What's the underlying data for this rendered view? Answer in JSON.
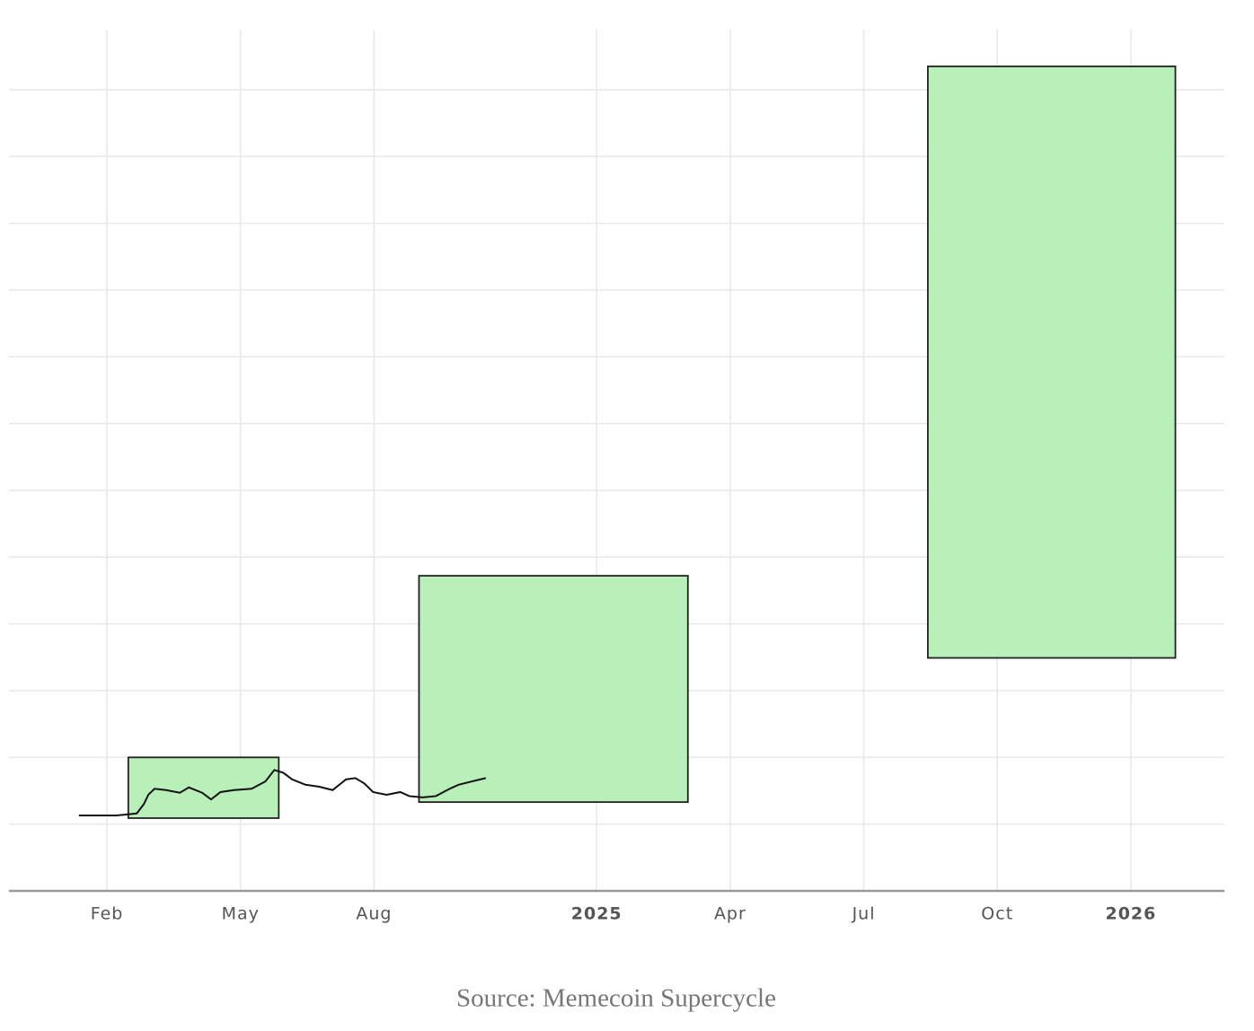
{
  "chart_data": {
    "type": "line",
    "caption": "Source: Memecoin Supercycle",
    "x": [
      0.37,
      1.22,
      1.67,
      1.83,
      1.93,
      2.07,
      2.33,
      2.64,
      2.84,
      3.14,
      3.34,
      3.55,
      3.85,
      4.25,
      4.56,
      4.76,
      4.96,
      5.16,
      5.46,
      5.77,
      6.07,
      6.37,
      6.58,
      6.78,
      6.98,
      7.28,
      7.59,
      7.79,
      8.09,
      8.39,
      8.7,
      8.9,
      9.2,
      9.51
    ],
    "series": [
      {
        "color": "#111111",
        "values": [
          1.13,
          1.13,
          1.16,
          1.3,
          1.44,
          1.53,
          1.51,
          1.47,
          1.55,
          1.47,
          1.37,
          1.48,
          1.51,
          1.53,
          1.64,
          1.81,
          1.77,
          1.67,
          1.59,
          1.56,
          1.51,
          1.67,
          1.69,
          1.61,
          1.48,
          1.44,
          1.48,
          1.42,
          1.4,
          1.42,
          1.53,
          1.59,
          1.64,
          1.69
        ]
      }
    ],
    "boxes": [
      {
        "x0": 1.48,
        "x1": 4.86,
        "y0": 1.09,
        "y1": 2.0
      },
      {
        "x0": 8.01,
        "x1": 14.05,
        "y0": 1.33,
        "y1": 4.72
      },
      {
        "x0": 19.44,
        "x1": 25.0,
        "y0": 3.49,
        "y1": 12.35
      }
    ],
    "box_color": "#b5eeb5",
    "xlim": [
      -1.2,
      26.1
    ],
    "xticks": [
      {
        "value": 1,
        "label": "Feb"
      },
      {
        "value": 4,
        "label": "May"
      },
      {
        "value": 7,
        "label": "Aug"
      },
      {
        "value": 12,
        "label": "2025",
        "bold": true
      },
      {
        "value": 15,
        "label": "Apr"
      },
      {
        "value": 18,
        "label": "Jul"
      },
      {
        "value": 21,
        "label": "Oct"
      },
      {
        "value": 24,
        "label": "2026",
        "bold": true
      }
    ],
    "ylim": [
      0,
      12.9
    ],
    "yticks": [
      1,
      2,
      3,
      4,
      5,
      6,
      7,
      8,
      9,
      10,
      11,
      12
    ],
    "grid": true
  }
}
